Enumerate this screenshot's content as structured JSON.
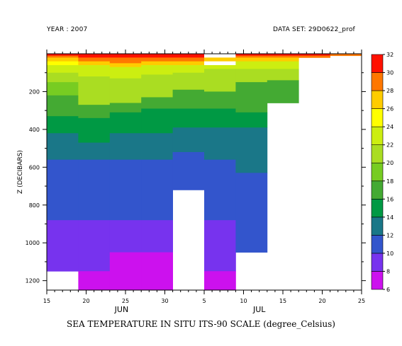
{
  "header": {
    "year": "YEAR : 2007",
    "dataset": "DATA SET: 29D0622_prof"
  },
  "caption": "SEA TEMPERATURE IN SITU ITS-90 SCALE (degree_Celsius)",
  "chart_data": {
    "type": "heatmap",
    "title": "SEA TEMPERATURE IN SITU ITS-90 SCALE (degree_Celsius)",
    "xlabel": "",
    "ylabel": "Z (DECIBARS)",
    "x_days": [
      15,
      20,
      25,
      30,
      35,
      40,
      45,
      50,
      55
    ],
    "x_tick_labels": [
      "15",
      "20",
      "25",
      "30",
      "5",
      "10",
      "15",
      "20",
      "25"
    ],
    "month_labels": [
      {
        "label": "JUN",
        "day": 24.5
      },
      {
        "label": "JUL",
        "day": 42
      }
    ],
    "x_range_days": [
      15,
      55
    ],
    "y_ticks": [
      200,
      400,
      600,
      800,
      1000,
      1200
    ],
    "y_tick_labels": [
      "200",
      "400",
      "600",
      "800",
      "1000",
      "1200"
    ],
    "y_range": [
      0,
      1250
    ],
    "colorbar": {
      "levels": [
        6,
        8,
        10,
        12,
        14,
        16,
        18,
        20,
        22,
        24,
        26,
        28,
        30,
        32
      ],
      "level_labels": [
        "6",
        "8",
        "10",
        "12",
        "14",
        "16",
        "18",
        "20",
        "22",
        "24",
        "26",
        "28",
        "30",
        "32"
      ],
      "colors": [
        "#cc11ee",
        "#7733ee",
        "#3355cc",
        "#1a7788",
        "#009944",
        "#44aa33",
        "#77cc22",
        "#aadd22",
        "#ccee11",
        "#ffff00",
        "#ffcc00",
        "#ff7700",
        "#ff1100",
        "#aa0000"
      ]
    },
    "columns": [
      {
        "x0": 15,
        "x1": 19,
        "bands": [
          [
            0,
            10,
            "#ff1100"
          ],
          [
            10,
            20,
            "#ff7700"
          ],
          [
            20,
            40,
            "#ffcc00"
          ],
          [
            40,
            60,
            "#ffff00"
          ],
          [
            60,
            100,
            "#ccee11"
          ],
          [
            100,
            150,
            "#aadd22"
          ],
          [
            150,
            220,
            "#77cc22"
          ],
          [
            220,
            330,
            "#44aa33"
          ],
          [
            330,
            420,
            "#009944"
          ],
          [
            420,
            560,
            "#1a7788"
          ],
          [
            560,
            880,
            "#3355cc"
          ],
          [
            880,
            1150,
            "#7733ee"
          ]
        ]
      },
      {
        "x0": 19,
        "x1": 23,
        "bands": [
          [
            0,
            20,
            "#ff1100"
          ],
          [
            20,
            40,
            "#ff7700"
          ],
          [
            40,
            60,
            "#ffcc00"
          ],
          [
            60,
            120,
            "#ccee11"
          ],
          [
            120,
            270,
            "#aadd22"
          ],
          [
            270,
            340,
            "#44aa33"
          ],
          [
            340,
            470,
            "#009944"
          ],
          [
            470,
            560,
            "#1a7788"
          ],
          [
            560,
            880,
            "#3355cc"
          ],
          [
            880,
            1150,
            "#7733ee"
          ],
          [
            1150,
            1250,
            "#cc11ee"
          ]
        ]
      },
      {
        "x0": 23,
        "x1": 27,
        "bands": [
          [
            0,
            20,
            "#ff1100"
          ],
          [
            20,
            50,
            "#ff7700"
          ],
          [
            50,
            70,
            "#ffcc00"
          ],
          [
            70,
            130,
            "#ccee11"
          ],
          [
            130,
            260,
            "#aadd22"
          ],
          [
            260,
            310,
            "#44aa33"
          ],
          [
            310,
            420,
            "#009944"
          ],
          [
            420,
            560,
            "#1a7788"
          ],
          [
            560,
            880,
            "#3355cc"
          ],
          [
            880,
            1050,
            "#7733ee"
          ],
          [
            1050,
            1250,
            "#cc11ee"
          ]
        ]
      },
      {
        "x0": 27,
        "x1": 31,
        "bands": [
          [
            0,
            20,
            "#ff1100"
          ],
          [
            20,
            40,
            "#ff7700"
          ],
          [
            40,
            60,
            "#ffcc00"
          ],
          [
            60,
            110,
            "#ccee11"
          ],
          [
            110,
            230,
            "#aadd22"
          ],
          [
            230,
            290,
            "#44aa33"
          ],
          [
            290,
            420,
            "#009944"
          ],
          [
            420,
            560,
            "#1a7788"
          ],
          [
            560,
            880,
            "#3355cc"
          ],
          [
            880,
            1050,
            "#7733ee"
          ],
          [
            1050,
            1250,
            "#cc11ee"
          ]
        ]
      },
      {
        "x0": 31,
        "x1": 35,
        "bands": [
          [
            0,
            20,
            "#ff1100"
          ],
          [
            20,
            40,
            "#ff7700"
          ],
          [
            40,
            60,
            "#ffcc00"
          ],
          [
            60,
            100,
            "#ccee11"
          ],
          [
            100,
            190,
            "#aadd22"
          ],
          [
            190,
            290,
            "#44aa33"
          ],
          [
            290,
            390,
            "#009944"
          ],
          [
            390,
            520,
            "#1a7788"
          ],
          [
            520,
            720,
            "#3355cc"
          ]
        ]
      },
      {
        "x0": 35,
        "x1": 39,
        "bands": [
          [
            0,
            20,
            "#ffffff"
          ],
          [
            20,
            40,
            "#ffcc00"
          ],
          [
            40,
            60,
            "#ffffff"
          ],
          [
            60,
            80,
            "#ccee11"
          ],
          [
            80,
            200,
            "#aadd22"
          ],
          [
            200,
            290,
            "#44aa33"
          ],
          [
            290,
            390,
            "#009944"
          ],
          [
            390,
            560,
            "#1a7788"
          ],
          [
            560,
            880,
            "#3355cc"
          ],
          [
            880,
            1150,
            "#7733ee"
          ],
          [
            1150,
            1250,
            "#cc11ee"
          ]
        ]
      },
      {
        "x0": 39,
        "x1": 43,
        "bands": [
          [
            0,
            10,
            "#ff1100"
          ],
          [
            10,
            20,
            "#ff7700"
          ],
          [
            20,
            40,
            "#ffcc00"
          ],
          [
            40,
            80,
            "#ccee11"
          ],
          [
            80,
            150,
            "#aadd22"
          ],
          [
            150,
            310,
            "#44aa33"
          ],
          [
            310,
            390,
            "#009944"
          ],
          [
            390,
            630,
            "#1a7788"
          ],
          [
            630,
            1050,
            "#3355cc"
          ]
        ]
      },
      {
        "x0": 43,
        "x1": 47,
        "bands": [
          [
            0,
            10,
            "#ff1100"
          ],
          [
            10,
            20,
            "#ff7700"
          ],
          [
            20,
            40,
            "#ffcc00"
          ],
          [
            40,
            80,
            "#ccee11"
          ],
          [
            80,
            140,
            "#aadd22"
          ],
          [
            140,
            260,
            "#44aa33"
          ]
        ]
      },
      {
        "x0": 47,
        "x1": 51,
        "bands": [
          [
            0,
            10,
            "#ff1100"
          ],
          [
            10,
            20,
            "#ff7700"
          ]
        ]
      },
      {
        "x0": 51,
        "x1": 55,
        "bands": [
          [
            0,
            10,
            "#ff7700"
          ]
        ]
      }
    ],
    "grid": false
  }
}
